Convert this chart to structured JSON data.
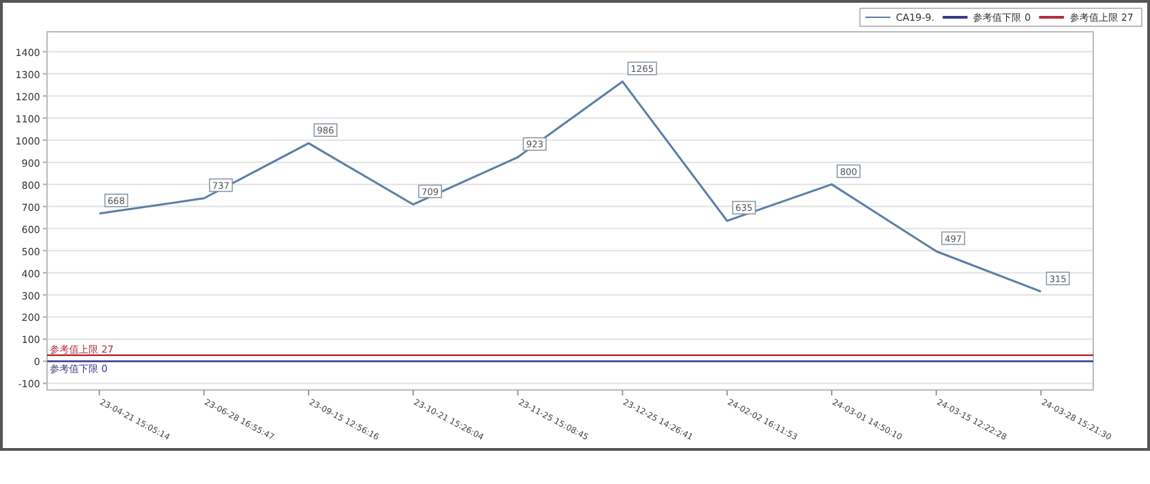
{
  "chart_data": {
    "type": "line",
    "categories": [
      "23-04-21 15:05:14",
      "23-06-28 16:55:47",
      "23-09-15 12:56:16",
      "23-10-21 15:26:04",
      "23-11-25 15:08:45",
      "23-12-25 14:26:41",
      "24-02-02 16:11:53",
      "24-03-01 14:50:10",
      "24-03-15 12:22:28",
      "24-03-28 15:21:30"
    ],
    "series": [
      {
        "name": "CA19-9.",
        "color": "#5b7fa6",
        "values": [
          668,
          737,
          986,
          709,
          923,
          1265,
          635,
          800,
          497,
          315
        ]
      }
    ],
    "ref_lines": [
      {
        "axis": "y",
        "value": 0,
        "label": "参考值下限 0",
        "color": "#3a3a8c"
      },
      {
        "axis": "y",
        "value": 27,
        "label": "参考值上限 27",
        "color": "#b03040"
      }
    ],
    "ylim": [
      -130,
      1490
    ],
    "yticks": [
      -100,
      0,
      100,
      200,
      300,
      400,
      500,
      600,
      700,
      800,
      900,
      1000,
      1100,
      1200,
      1300,
      1400
    ],
    "data_labels": true,
    "grid": "y",
    "legend": "top right",
    "marker": "none",
    "line_style": "solid"
  }
}
